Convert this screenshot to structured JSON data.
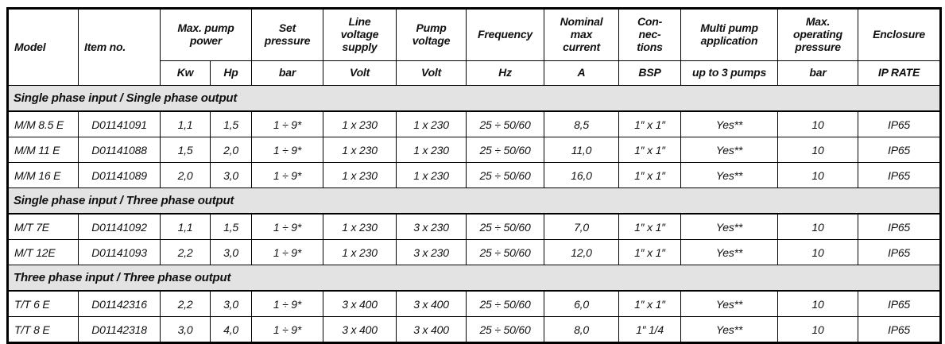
{
  "table": {
    "header": {
      "model": "Model",
      "item_no": "Item no.",
      "max_pump_power": "Max. pump\npower",
      "set_pressure": "Set\npressure",
      "line_voltage_supply": "Line\nvoltage\nsupply",
      "pump_voltage": "Pump\nvoltage",
      "frequency": "Frequency",
      "nominal_max_current": "Nominal\nmax\ncurrent",
      "connections": "Con-\nnec-\ntions",
      "multi_pump_application": "Multi pump\napplication",
      "max_operating_pressure": "Max.\noperating\npressure",
      "enclosure": "Enclosure",
      "units": {
        "kw": "Kw",
        "hp": "Hp",
        "set_pressure": "bar",
        "line_voltage": "Volt",
        "pump_voltage": "Volt",
        "frequency": "Hz",
        "current": "A",
        "connections": "BSP",
        "multi_pump": "up to 3 pumps",
        "max_pressure": "bar",
        "enclosure": "IP RATE"
      }
    },
    "column_keys": [
      "model",
      "item-no",
      "kw",
      "hp",
      "set-pressure",
      "line-voltage-supply",
      "pump-voltage",
      "frequency",
      "nominal-max-current",
      "connections",
      "multi-pump",
      "max-operating-pressure",
      "enclosure"
    ],
    "sections": [
      {
        "title": "Single phase input / Single phase output",
        "rows": [
          [
            "M/M 8.5 E",
            "D01141091",
            "1,1",
            "1,5",
            "1 ÷ 9*",
            "1 x 230",
            "1 x 230",
            "25 ÷ 50/60",
            "8,5",
            "1″ x 1″",
            "Yes**",
            "10",
            "IP65"
          ],
          [
            "M/M 11 E",
            "D01141088",
            "1,5",
            "2,0",
            "1 ÷ 9*",
            "1 x 230",
            "1 x 230",
            "25 ÷ 50/60",
            "11,0",
            "1″ x 1″",
            "Yes**",
            "10",
            "IP65"
          ],
          [
            "M/M 16 E",
            "D01141089",
            "2,0",
            "3,0",
            "1 ÷ 9*",
            "1 x 230",
            "1 x 230",
            "25 ÷ 50/60",
            "16,0",
            "1″ x 1″",
            "Yes**",
            "10",
            "IP65"
          ]
        ]
      },
      {
        "title": "Single phase input / Three phase output",
        "rows": [
          [
            "M/T 7E",
            "D01141092",
            "1,1",
            "1,5",
            "1 ÷ 9*",
            "1 x 230",
            "3 x 230",
            "25 ÷ 50/60",
            "7,0",
            "1″ x 1″",
            "Yes**",
            "10",
            "IP65"
          ],
          [
            "M/T 12E",
            "D01141093",
            "2,2",
            "3,0",
            "1 ÷ 9*",
            "1 x 230",
            "3 x 230",
            "25 ÷ 50/60",
            "12,0",
            "1″ x 1″",
            "Yes**",
            "10",
            "IP65"
          ]
        ]
      },
      {
        "title": "Three phase input / Three phase output",
        "rows": [
          [
            "T/T 6 E",
            "D01142316",
            "2,2",
            "3,0",
            "1 ÷ 9*",
            "3 x 400",
            "3 x 400",
            "25 ÷ 50/60",
            "6,0",
            "1″ x 1″",
            "Yes**",
            "10",
            "IP65"
          ],
          [
            "T/T 8 E",
            "D01142318",
            "3,0",
            "4,0",
            "1 ÷ 9*",
            "3 x 400",
            "3 x 400",
            "25 ÷ 50/60",
            "8,0",
            "1″ 1/4",
            "Yes**",
            "10",
            "IP65"
          ]
        ]
      }
    ],
    "colors": {
      "section_bg": "#e3e3e3",
      "border": "#000000",
      "text": "#111111"
    }
  }
}
